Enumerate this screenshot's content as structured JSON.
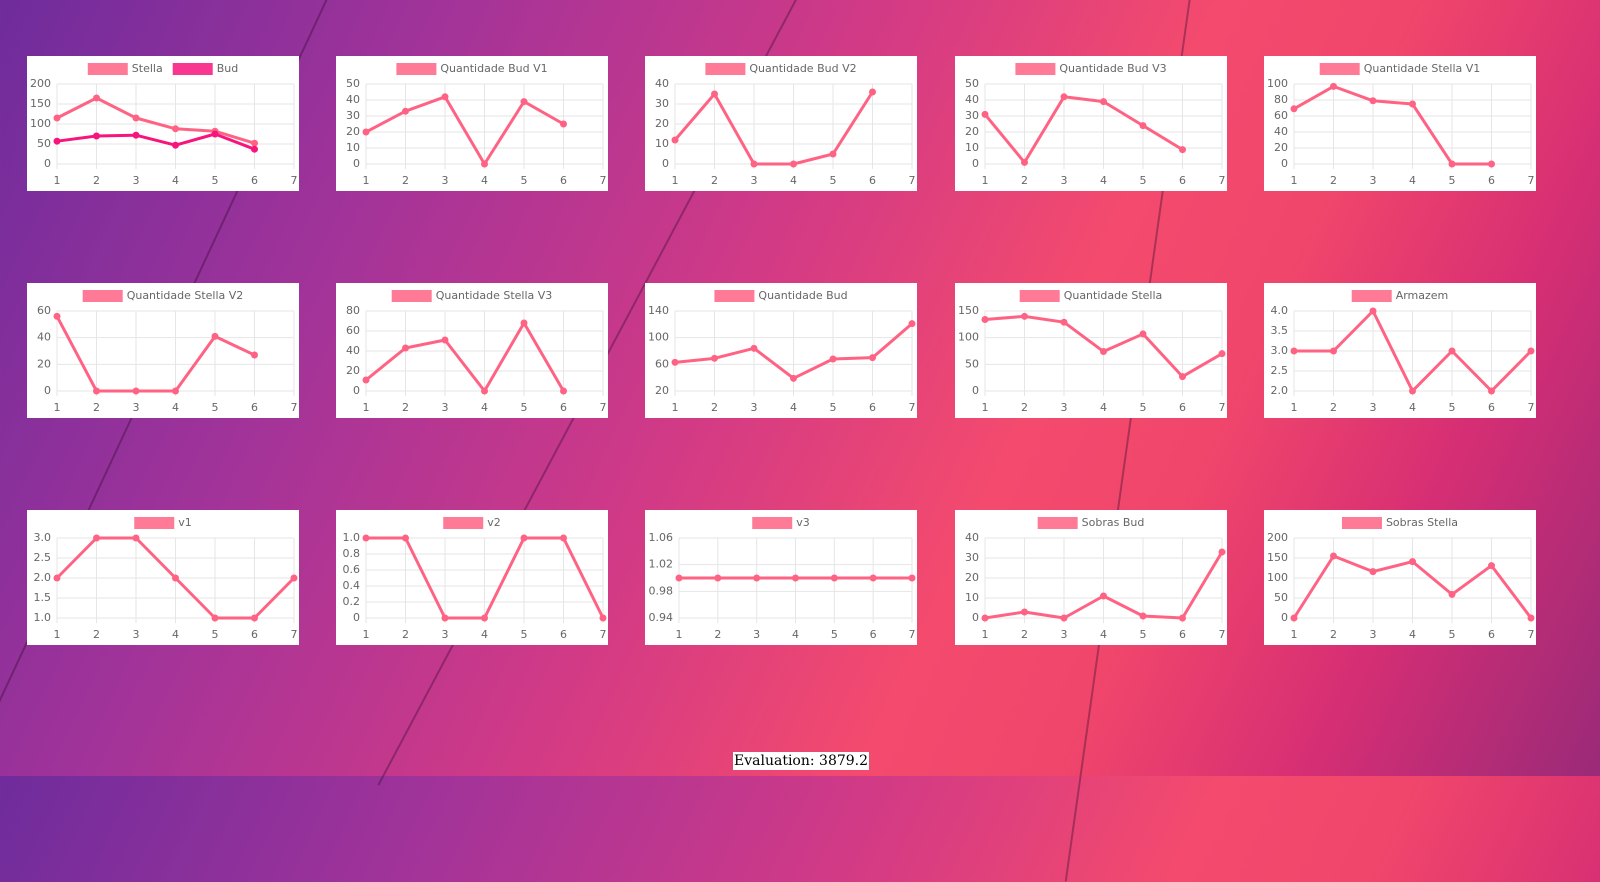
{
  "chart_data": [
    {
      "type": "line",
      "categories": [
        "1",
        "2",
        "3",
        "4",
        "5",
        "6",
        "7"
      ],
      "series": [
        {
          "name": "Stella",
          "color": "#ff6384",
          "values": [
            115,
            165,
            115,
            88,
            82,
            52,
            null
          ]
        },
        {
          "name": "Bud",
          "color": "#f7157d",
          "values": [
            57,
            70,
            72,
            47,
            75,
            37,
            null
          ]
        }
      ],
      "ylim": [
        0,
        200
      ],
      "yticks": [
        0,
        50,
        100,
        150,
        200
      ],
      "grid": true
    },
    {
      "type": "line",
      "categories": [
        "1",
        "2",
        "3",
        "4",
        "5",
        "6",
        "7"
      ],
      "series": [
        {
          "name": "Quantidade Bud V1",
          "color": "#ff6384",
          "values": [
            20,
            33,
            42,
            0,
            39,
            25,
            null
          ]
        }
      ],
      "ylim": [
        0,
        50
      ],
      "yticks": [
        0,
        10,
        20,
        30,
        40,
        50
      ],
      "grid": true
    },
    {
      "type": "line",
      "categories": [
        "1",
        "2",
        "3",
        "4",
        "5",
        "6",
        "7"
      ],
      "series": [
        {
          "name": "Quantidade Bud V2",
          "color": "#ff6384",
          "values": [
            12,
            35,
            0,
            0,
            5,
            36,
            null
          ]
        }
      ],
      "ylim": [
        0,
        40
      ],
      "yticks": [
        0,
        10,
        20,
        30,
        40
      ],
      "grid": true
    },
    {
      "type": "line",
      "categories": [
        "1",
        "2",
        "3",
        "4",
        "5",
        "6",
        "7"
      ],
      "series": [
        {
          "name": "Quantidade Bud V3",
          "color": "#ff6384",
          "values": [
            31,
            1,
            42,
            39,
            24,
            9,
            null
          ]
        }
      ],
      "ylim": [
        0,
        50
      ],
      "yticks": [
        0,
        10,
        20,
        30,
        40,
        50
      ],
      "grid": true
    },
    {
      "type": "line",
      "categories": [
        "1",
        "2",
        "3",
        "4",
        "5",
        "6",
        "7"
      ],
      "series": [
        {
          "name": "Quantidade Stella V1",
          "color": "#ff6384",
          "values": [
            69,
            97,
            79,
            75,
            0,
            0,
            null
          ]
        }
      ],
      "ylim": [
        0,
        100
      ],
      "yticks": [
        0,
        20,
        40,
        60,
        80,
        100
      ],
      "grid": true
    },
    {
      "type": "line",
      "categories": [
        "1",
        "2",
        "3",
        "4",
        "5",
        "6",
        "7"
      ],
      "series": [
        {
          "name": "Quantidade Stella V2",
          "color": "#ff6384",
          "values": [
            56,
            0,
            0,
            0,
            41,
            27,
            null
          ]
        }
      ],
      "ylim": [
        0,
        60
      ],
      "yticks": [
        0,
        20,
        40,
        60
      ],
      "grid": true
    },
    {
      "type": "line",
      "categories": [
        "1",
        "2",
        "3",
        "4",
        "5",
        "6",
        "7"
      ],
      "series": [
        {
          "name": "Quantidade Stella V3",
          "color": "#ff6384",
          "values": [
            11,
            43,
            51,
            0,
            68,
            0,
            null
          ]
        }
      ],
      "ylim": [
        0,
        80
      ],
      "yticks": [
        0,
        20,
        40,
        60,
        80
      ],
      "grid": true
    },
    {
      "type": "line",
      "categories": [
        "1",
        "2",
        "3",
        "4",
        "5",
        "6",
        "7"
      ],
      "series": [
        {
          "name": "Quantidade Bud",
          "color": "#ff6384",
          "values": [
            63,
            69,
            84,
            39,
            68,
            70,
            121
          ]
        }
      ],
      "ylim": [
        20,
        140
      ],
      "yticks": [
        20,
        60,
        100,
        140
      ],
      "grid": true
    },
    {
      "type": "line",
      "categories": [
        "1",
        "2",
        "3",
        "4",
        "5",
        "6",
        "7"
      ],
      "series": [
        {
          "name": "Quantidade Stella",
          "color": "#ff6384",
          "values": [
            134,
            140,
            129,
            74,
            107,
            27,
            70
          ]
        }
      ],
      "ylim": [
        0,
        150
      ],
      "yticks": [
        0,
        50,
        100,
        150
      ],
      "grid": true
    },
    {
      "type": "line",
      "categories": [
        "1",
        "2",
        "3",
        "4",
        "5",
        "6",
        "7"
      ],
      "series": [
        {
          "name": "Armazem",
          "color": "#ff6384",
          "values": [
            3,
            3,
            4,
            2,
            3,
            2,
            3
          ]
        }
      ],
      "ylim": [
        2,
        4
      ],
      "yticks": [
        {
          "value": 2,
          "label": "2.0"
        },
        2.5,
        {
          "value": 3,
          "label": "3.0"
        },
        3.5,
        {
          "value": 4,
          "label": "4.0"
        }
      ],
      "grid": true
    },
    {
      "type": "line",
      "categories": [
        "1",
        "2",
        "3",
        "4",
        "5",
        "6",
        "7"
      ],
      "series": [
        {
          "name": "v1",
          "color": "#ff6384",
          "values": [
            2,
            3,
            3,
            2,
            1,
            1,
            2
          ]
        }
      ],
      "ylim": [
        1,
        3
      ],
      "yticks": [
        {
          "value": 1,
          "label": "1.0"
        },
        1.5,
        {
          "value": 2,
          "label": "2.0"
        },
        2.5,
        {
          "value": 3,
          "label": "3.0"
        }
      ],
      "grid": true
    },
    {
      "type": "line",
      "categories": [
        "1",
        "2",
        "3",
        "4",
        "5",
        "6",
        "7"
      ],
      "series": [
        {
          "name": "v2",
          "color": "#ff6384",
          "values": [
            1,
            1,
            0,
            0,
            1,
            1,
            0
          ]
        }
      ],
      "ylim": [
        0,
        1
      ],
      "yticks": [
        0,
        0.2,
        0.4,
        0.6,
        0.8,
        {
          "value": 1,
          "label": "1.0"
        }
      ],
      "grid": true
    },
    {
      "type": "line",
      "categories": [
        "1",
        "2",
        "3",
        "4",
        "5",
        "6",
        "7"
      ],
      "series": [
        {
          "name": "v3",
          "color": "#ff6384",
          "values": [
            1,
            1,
            1,
            1,
            1,
            1,
            1
          ]
        }
      ],
      "ylim": [
        0.94,
        1.06
      ],
      "yticks": [
        0.94,
        0.98,
        1.02,
        1.06
      ],
      "grid": true
    },
    {
      "type": "line",
      "categories": [
        "1",
        "2",
        "3",
        "4",
        "5",
        "6",
        "7"
      ],
      "series": [
        {
          "name": "Sobras Bud",
          "color": "#ff6384",
          "values": [
            0,
            3,
            0,
            11,
            1,
            0,
            33
          ]
        }
      ],
      "ylim": [
        0,
        40
      ],
      "yticks": [
        0,
        10,
        20,
        30,
        40
      ],
      "grid": true
    },
    {
      "type": "line",
      "categories": [
        "1",
        "2",
        "3",
        "4",
        "5",
        "6",
        "7"
      ],
      "series": [
        {
          "name": "Sobras Stella",
          "color": "#ff6384",
          "values": [
            0,
            155,
            116,
            141,
            59,
            131,
            0
          ]
        }
      ],
      "ylim": [
        0,
        200
      ],
      "yticks": [
        0,
        50,
        100,
        150,
        200
      ],
      "grid": true
    }
  ],
  "footer": "Evaluation: 3879.2"
}
